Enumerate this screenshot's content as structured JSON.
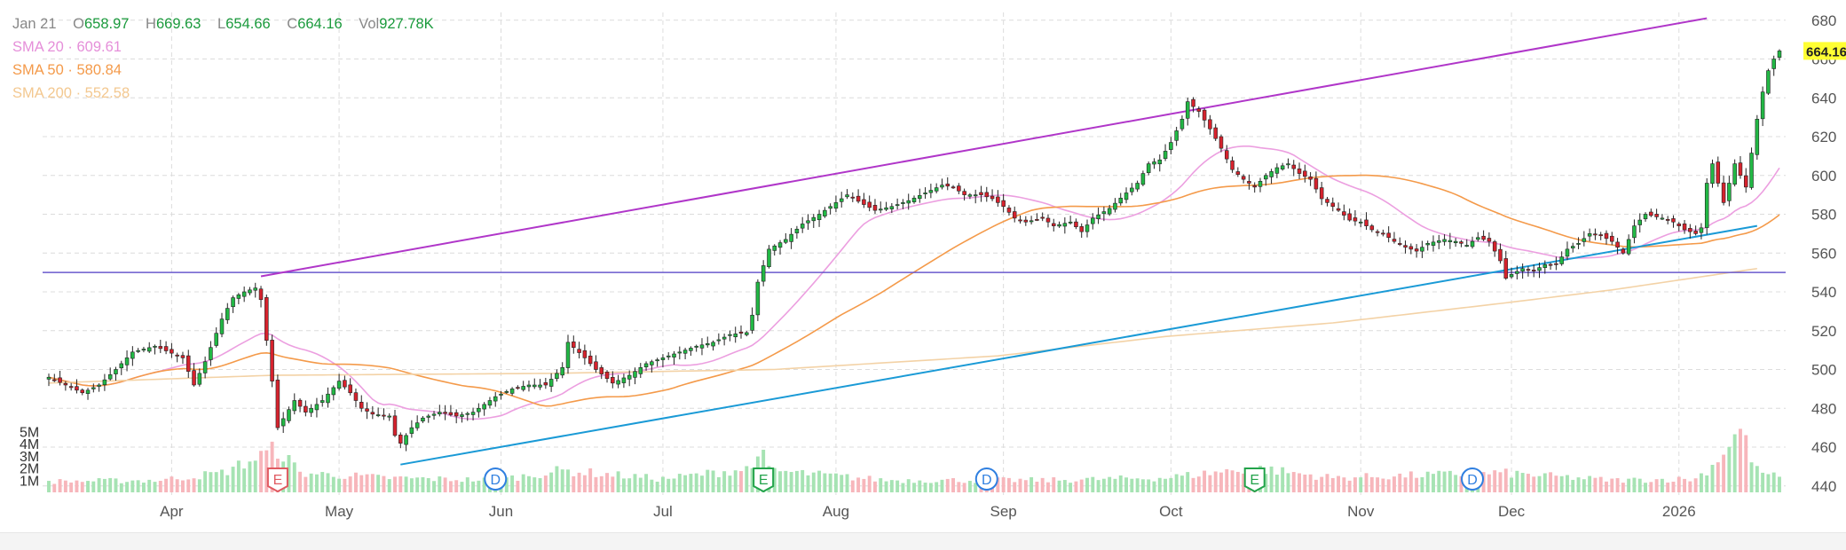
{
  "legend": {
    "date": "Jan 21",
    "open_label": "O",
    "open": "658.97",
    "high_label": "H",
    "high": "669.63",
    "low_label": "L",
    "low": "654.66",
    "close_label": "C",
    "close": "664.16",
    "vol_label": "Vol",
    "vol": "927.78K",
    "sma20": {
      "label": "SMA 20",
      "sep": "·",
      "value": "609.61",
      "color": "#e58fd9"
    },
    "sma50": {
      "label": "SMA 50",
      "sep": "·",
      "value": "580.84",
      "color": "#f49a4a"
    },
    "sma200": {
      "label": "SMA 200",
      "sep": "·",
      "value": "552.58",
      "color": "#f3c890"
    }
  },
  "chart_data": {
    "type": "candlestick",
    "x_labels": [
      {
        "label": "Apr",
        "i": 22
      },
      {
        "label": "May",
        "i": 52
      },
      {
        "label": "Jun",
        "i": 81
      },
      {
        "label": "Jul",
        "i": 110
      },
      {
        "label": "Aug",
        "i": 141
      },
      {
        "label": "Sep",
        "i": 171
      },
      {
        "label": "Oct",
        "i": 201
      },
      {
        "label": "Nov",
        "i": 235
      },
      {
        "label": "Dec",
        "i": 262
      },
      {
        "label": "2026",
        "i": 292
      }
    ],
    "y_ticks": [
      440,
      460,
      480,
      500,
      520,
      540,
      560,
      580,
      600,
      620,
      640,
      660,
      680
    ],
    "ylim": [
      428,
      684
    ],
    "volume_ticks": [
      {
        "label": "1M",
        "v": 1
      },
      {
        "label": "2M",
        "v": 2
      },
      {
        "label": "3M",
        "v": 3
      },
      {
        "label": "4M",
        "v": 4
      },
      {
        "label": "5M",
        "v": 5
      }
    ],
    "volume_max": 6.0,
    "last_price": {
      "value": 664.16,
      "label": "664.16",
      "bg": "#ffff33"
    },
    "colors": {
      "up": "#22b845",
      "down": "#d6222d",
      "up_vol": "#a6e3b3",
      "down_vol": "#f7b6bb"
    },
    "trendlines": [
      {
        "from": [
          38,
          548
        ],
        "to": [
          297,
          681
        ],
        "color": "#b036c9"
      },
      {
        "from": [
          63,
          451
        ],
        "to": [
          306,
          574
        ],
        "color": "#1a9ad6"
      }
    ],
    "h_lines": [
      {
        "value": 550,
        "color": "#6a5acd"
      }
    ],
    "markers": [
      {
        "type": "E",
        "i": 41,
        "color": "#e05a61"
      },
      {
        "type": "D",
        "i": 80,
        "color": "#2f7fe0"
      },
      {
        "type": "E",
        "i": 128,
        "color": "#22a34a"
      },
      {
        "type": "D",
        "i": 168,
        "color": "#2f7fe0"
      },
      {
        "type": "E",
        "i": 216,
        "color": "#22a34a"
      },
      {
        "type": "D",
        "i": 255,
        "color": "#2f7fe0"
      }
    ],
    "sma_keys": [
      {
        "key": "sma20",
        "name": "SMA 20",
        "period": 20,
        "color": "#ec9fe0"
      },
      {
        "key": "sma50",
        "name": "SMA 50",
        "period": 50,
        "color": "#f49a4a"
      },
      {
        "key": "sma200",
        "name": "SMA 200",
        "period": 200,
        "color": "#f3d2a6"
      }
    ],
    "sma200_anchors": [
      [
        0,
        493
      ],
      [
        40,
        497
      ],
      [
        90,
        498
      ],
      [
        130,
        500
      ],
      [
        170,
        507
      ],
      [
        200,
        517
      ],
      [
        230,
        524
      ],
      [
        260,
        534
      ],
      [
        280,
        541
      ],
      [
        306,
        552
      ]
    ],
    "close_anchors": [
      [
        0,
        496
      ],
      [
        3,
        492
      ],
      [
        6,
        488
      ],
      [
        9,
        492
      ],
      [
        12,
        500
      ],
      [
        15,
        509
      ],
      [
        19,
        512
      ],
      [
        24,
        506
      ],
      [
        26,
        492
      ],
      [
        28,
        504
      ],
      [
        31,
        526
      ],
      [
        33,
        537
      ],
      [
        35,
        540
      ],
      [
        37,
        542
      ],
      [
        38,
        536
      ],
      [
        40,
        494
      ],
      [
        41,
        470
      ],
      [
        44,
        484
      ],
      [
        46,
        478
      ],
      [
        49,
        484
      ],
      [
        52,
        494
      ],
      [
        54,
        488
      ],
      [
        56,
        480
      ],
      [
        58,
        477
      ],
      [
        61,
        476
      ],
      [
        62,
        466
      ],
      [
        63,
        462
      ],
      [
        65,
        470
      ],
      [
        67,
        475
      ],
      [
        70,
        478
      ],
      [
        73,
        476
      ],
      [
        76,
        478
      ],
      [
        78,
        482
      ],
      [
        80,
        486
      ],
      [
        83,
        490
      ],
      [
        86,
        492
      ],
      [
        89,
        492
      ],
      [
        92,
        501
      ],
      [
        93,
        514
      ],
      [
        96,
        506
      ],
      [
        98,
        500
      ],
      [
        101,
        493
      ],
      [
        104,
        497
      ],
      [
        107,
        503
      ],
      [
        110,
        506
      ],
      [
        113,
        509
      ],
      [
        116,
        512
      ],
      [
        119,
        514
      ],
      [
        122,
        518
      ],
      [
        125,
        519
      ],
      [
        126,
        528
      ],
      [
        127,
        545
      ],
      [
        129,
        562
      ],
      [
        132,
        567
      ],
      [
        135,
        575
      ],
      [
        138,
        580
      ],
      [
        141,
        586
      ],
      [
        143,
        590
      ],
      [
        146,
        585
      ],
      [
        148,
        582
      ],
      [
        151,
        584
      ],
      [
        154,
        587
      ],
      [
        157,
        591
      ],
      [
        160,
        595
      ],
      [
        162,
        594
      ],
      [
        164,
        590
      ],
      [
        167,
        590
      ],
      [
        169,
        588
      ],
      [
        171,
        584
      ],
      [
        173,
        578
      ],
      [
        175,
        576
      ],
      [
        178,
        578
      ],
      [
        180,
        574
      ],
      [
        183,
        576
      ],
      [
        185,
        571
      ],
      [
        187,
        578
      ],
      [
        190,
        583
      ],
      [
        193,
        591
      ],
      [
        195,
        596
      ],
      [
        197,
        606
      ],
      [
        199,
        608
      ],
      [
        201,
        617
      ],
      [
        203,
        629
      ],
      [
        204,
        638
      ],
      [
        206,
        633
      ],
      [
        208,
        624
      ],
      [
        210,
        614
      ],
      [
        212,
        603
      ],
      [
        214,
        598
      ],
      [
        216,
        594
      ],
      [
        218,
        600
      ],
      [
        220,
        604
      ],
      [
        222,
        606
      ],
      [
        224,
        601
      ],
      [
        226,
        598
      ],
      [
        228,
        588
      ],
      [
        231,
        582
      ],
      [
        233,
        577
      ],
      [
        235,
        576
      ],
      [
        237,
        572
      ],
      [
        239,
        570
      ],
      [
        241,
        566
      ],
      [
        243,
        563
      ],
      [
        245,
        561
      ],
      [
        247,
        565
      ],
      [
        250,
        567
      ],
      [
        252,
        566
      ],
      [
        254,
        564
      ],
      [
        256,
        568
      ],
      [
        258,
        566
      ],
      [
        260,
        556
      ],
      [
        261,
        547
      ],
      [
        262,
        549
      ],
      [
        264,
        552
      ],
      [
        266,
        551
      ],
      [
        268,
        554
      ],
      [
        270,
        554
      ],
      [
        272,
        562
      ],
      [
        274,
        565
      ],
      [
        276,
        570
      ],
      [
        278,
        569
      ],
      [
        280,
        566
      ],
      [
        282,
        560
      ],
      [
        284,
        574
      ],
      [
        286,
        580
      ],
      [
        289,
        578
      ],
      [
        291,
        576
      ],
      [
        293,
        572
      ],
      [
        295,
        570
      ],
      [
        296,
        573
      ],
      [
        297,
        596
      ],
      [
        298,
        606
      ],
      [
        300,
        586
      ],
      [
        302,
        606
      ],
      [
        304,
        594
      ],
      [
        306,
        629
      ],
      [
        307,
        643
      ],
      [
        308,
        654
      ],
      [
        309,
        660
      ],
      [
        310,
        664.16
      ]
    ],
    "volume_anchors": [
      [
        0,
        0.9
      ],
      [
        20,
        1.0
      ],
      [
        31,
        1.6
      ],
      [
        41,
        3.6
      ],
      [
        45,
        1.6
      ],
      [
        60,
        1.2
      ],
      [
        80,
        1.0
      ],
      [
        92,
        1.8
      ],
      [
        110,
        1.1
      ],
      [
        126,
        2.0
      ],
      [
        127,
        3.9
      ],
      [
        129,
        1.8
      ],
      [
        150,
        1.0
      ],
      [
        180,
        1.0
      ],
      [
        200,
        1.2
      ],
      [
        216,
        2.0
      ],
      [
        230,
        1.2
      ],
      [
        260,
        1.6
      ],
      [
        280,
        1.0
      ],
      [
        295,
        1.1
      ],
      [
        298,
        2.2
      ],
      [
        303,
        5.2
      ],
      [
        306,
        1.8
      ],
      [
        310,
        1.2
      ]
    ]
  }
}
